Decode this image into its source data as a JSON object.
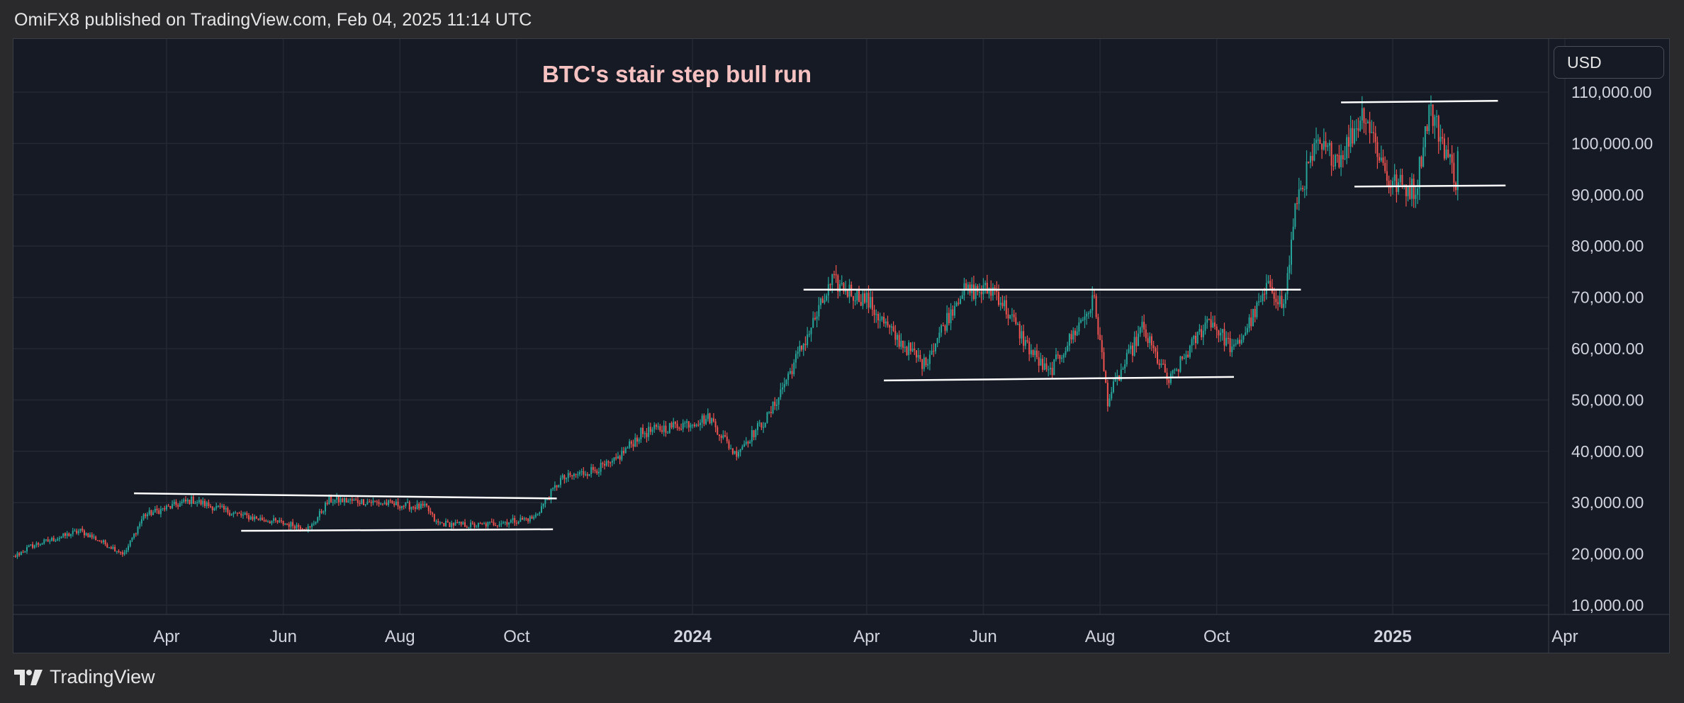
{
  "header": {
    "published_text": "OmiFX8 published on TradingView.com, Feb 04, 2025 11:14 UTC"
  },
  "currency": {
    "label": "USD"
  },
  "footer": {
    "brand": "TradingView"
  },
  "colors": {
    "background": "#161a25",
    "up": "#26a69a",
    "down": "#ef5350",
    "title": "#f6c1c1",
    "grid": "#242833",
    "text": "#d1d4dc",
    "trendline": "#ffffff"
  },
  "chart_data": {
    "type": "candlestick",
    "title": "BTC's stair step bull run",
    "xlabel": "",
    "ylabel": "",
    "ylim": [
      6000,
      115000
    ],
    "xlim": [
      "2023-01-01",
      "2025-04-03"
    ],
    "y_ticks": [
      "10,000.00",
      "20,000.00",
      "30,000.00",
      "40,000.00",
      "50,000.00",
      "60,000.00",
      "70,000.00",
      "80,000.00",
      "90,000.00",
      "100,000.00",
      "110,000.00"
    ],
    "x_ticks": [
      {
        "label": "Apr",
        "date": "2023-04-01",
        "bold": false
      },
      {
        "label": "Jun",
        "date": "2023-06-01",
        "bold": false
      },
      {
        "label": "Aug",
        "date": "2023-08-01",
        "bold": false
      },
      {
        "label": "Oct",
        "date": "2023-10-01",
        "bold": false
      },
      {
        "label": "2024",
        "date": "2024-01-01",
        "bold": true
      },
      {
        "label": "Apr",
        "date": "2024-04-01",
        "bold": false
      },
      {
        "label": "Jun",
        "date": "2024-06-01",
        "bold": false
      },
      {
        "label": "Aug",
        "date": "2024-08-01",
        "bold": false
      },
      {
        "label": "Oct",
        "date": "2024-10-01",
        "bold": false
      },
      {
        "label": "2025",
        "date": "2025-01-01",
        "bold": true
      },
      {
        "label": "Apr",
        "date": "2025-04-01",
        "bold": false
      }
    ],
    "grid": true,
    "price_path": [
      [
        "2023-01-01",
        17000
      ],
      [
        "2023-01-20",
        21500
      ],
      [
        "2023-02-15",
        24500
      ],
      [
        "2023-03-10",
        20000
      ],
      [
        "2023-03-20",
        27500
      ],
      [
        "2023-04-14",
        30500
      ],
      [
        "2023-05-10",
        27500
      ],
      [
        "2023-06-15",
        25000
      ],
      [
        "2023-06-25",
        30500
      ],
      [
        "2023-07-15",
        30200
      ],
      [
        "2023-08-15",
        29000
      ],
      [
        "2023-08-20",
        26000
      ],
      [
        "2023-09-10",
        25500
      ],
      [
        "2023-10-10",
        27000
      ],
      [
        "2023-10-24",
        34500
      ],
      [
        "2023-11-20",
        37500
      ],
      [
        "2023-12-05",
        43500
      ],
      [
        "2024-01-10",
        46500
      ],
      [
        "2024-01-23",
        39500
      ],
      [
        "2024-02-10",
        47000
      ],
      [
        "2024-02-28",
        61000
      ],
      [
        "2024-03-14",
        73000
      ],
      [
        "2024-04-01",
        69500
      ],
      [
        "2024-04-14",
        63000
      ],
      [
        "2024-05-01",
        57000
      ],
      [
        "2024-05-20",
        71000
      ],
      [
        "2024-06-07",
        71500
      ],
      [
        "2024-06-24",
        60500
      ],
      [
        "2024-07-05",
        55000
      ],
      [
        "2024-07-29",
        69500
      ],
      [
        "2024-08-05",
        50000
      ],
      [
        "2024-08-23",
        64000
      ],
      [
        "2024-09-06",
        53500
      ],
      [
        "2024-09-27",
        66000
      ],
      [
        "2024-10-10",
        59500
      ],
      [
        "2024-10-29",
        72500
      ],
      [
        "2024-11-05",
        68000
      ],
      [
        "2024-11-12",
        89500
      ],
      [
        "2024-11-22",
        99000
      ],
      [
        "2024-12-05",
        97500
      ],
      [
        "2024-12-17",
        106500
      ],
      [
        "2024-12-30",
        92500
      ],
      [
        "2025-01-13",
        91000
      ],
      [
        "2025-01-20",
        107000
      ],
      [
        "2025-01-27",
        100500
      ],
      [
        "2025-02-03",
        93000
      ],
      [
        "2025-02-04",
        98500
      ]
    ],
    "trendlines": [
      {
        "from": [
          "2023-03-15",
          31800
        ],
        "to": [
          "2023-10-22",
          30800
        ]
      },
      {
        "from": [
          "2023-05-10",
          24500
        ],
        "to": [
          "2023-10-20",
          24800
        ]
      },
      {
        "from": [
          "2024-02-28",
          71500
        ],
        "to": [
          "2024-11-14",
          71500
        ]
      },
      {
        "from": [
          "2024-04-10",
          53800
        ],
        "to": [
          "2024-10-10",
          54500
        ]
      },
      {
        "from": [
          "2024-12-05",
          108000
        ],
        "to": [
          "2025-02-25",
          108300
        ]
      },
      {
        "from": [
          "2024-12-12",
          91600
        ],
        "to": [
          "2025-03-01",
          91800
        ]
      }
    ]
  }
}
